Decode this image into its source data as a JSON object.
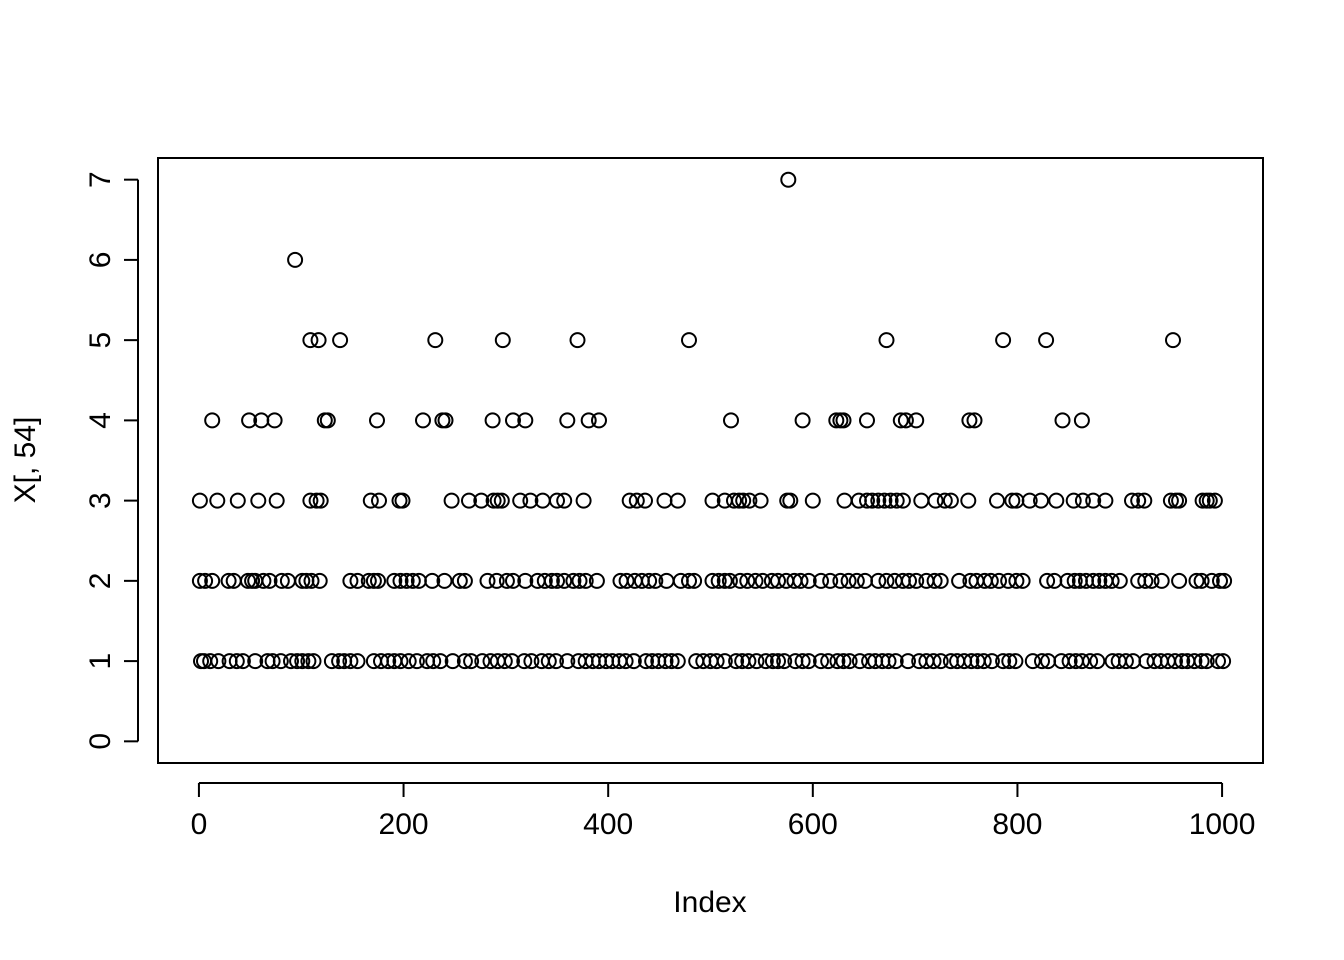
{
  "chart_data": {
    "type": "scatter",
    "title": "",
    "xlabel": "Index",
    "ylabel": "X[, 54]",
    "xlim": [
      -40,
      1040
    ],
    "ylim": [
      -0.27,
      7.27
    ],
    "x_ticks": [
      0,
      200,
      400,
      600,
      800,
      1000
    ],
    "y_ticks": [
      0,
      1,
      2,
      3,
      4,
      5,
      6,
      7
    ],
    "grid": false,
    "legend": "none",
    "marker": "open-circle",
    "points": {
      "7": [
        576
      ],
      "6": [
        94
      ],
      "5": [
        109,
        117,
        138,
        231,
        297,
        370,
        479,
        672,
        786,
        828,
        952
      ],
      "4": [
        13,
        49,
        61,
        74,
        123,
        126,
        174,
        219,
        238,
        241,
        287,
        307,
        319,
        360,
        381,
        391,
        520,
        590,
        623,
        627,
        630,
        653,
        686,
        691,
        701,
        753,
        758,
        844,
        863
      ],
      "3": [
        1,
        18,
        38,
        58,
        76,
        109,
        115,
        119,
        168,
        176,
        196,
        199,
        247,
        264,
        276,
        288,
        292,
        296,
        314,
        324,
        336,
        350,
        357,
        376,
        421,
        428,
        436,
        455,
        468,
        502,
        514,
        523,
        528,
        532,
        538,
        549,
        575,
        578,
        600,
        631,
        645,
        653,
        658,
        664,
        670,
        676,
        682,
        688,
        706,
        720,
        729,
        735,
        752,
        780,
        795,
        799,
        812,
        823,
        838,
        855,
        864,
        874,
        886,
        912,
        918,
        924,
        950,
        955,
        958,
        981,
        985,
        988,
        993
      ],
      "2": [
        1,
        6,
        13,
        29,
        34,
        48,
        52,
        55,
        63,
        69,
        81,
        87,
        101,
        105,
        110,
        118,
        148,
        155,
        166,
        171,
        175,
        191,
        197,
        203,
        209,
        215,
        228,
        240,
        255,
        260,
        282,
        291,
        301,
        307,
        319,
        331,
        338,
        345,
        350,
        357,
        366,
        372,
        378,
        389,
        412,
        418,
        426,
        433,
        440,
        446,
        457,
        471,
        479,
        484,
        502,
        508,
        514,
        519,
        529,
        536,
        544,
        551,
        560,
        566,
        574,
        582,
        588,
        596,
        608,
        617,
        627,
        635,
        643,
        651,
        664,
        672,
        680,
        688,
        694,
        701,
        711,
        719,
        725,
        743,
        754,
        760,
        768,
        774,
        782,
        791,
        799,
        805,
        829,
        836,
        849,
        856,
        861,
        867,
        874,
        880,
        886,
        892,
        900,
        918,
        925,
        931,
        941,
        958,
        975,
        980,
        990,
        998,
        1002
      ],
      "1": [
        2,
        5,
        11,
        19,
        30,
        37,
        43,
        55,
        67,
        72,
        80,
        90,
        96,
        101,
        107,
        112,
        130,
        137,
        142,
        148,
        155,
        171,
        178,
        185,
        191,
        197,
        205,
        213,
        223,
        229,
        236,
        248,
        260,
        266,
        277,
        285,
        292,
        299,
        306,
        318,
        325,
        335,
        342,
        349,
        360,
        371,
        378,
        385,
        391,
        398,
        404,
        411,
        417,
        425,
        437,
        443,
        449,
        456,
        462,
        468,
        486,
        493,
        500,
        506,
        514,
        525,
        531,
        537,
        545,
        554,
        561,
        566,
        572,
        583,
        590,
        596,
        608,
        615,
        624,
        630,
        636,
        646,
        655,
        661,
        668,
        674,
        681,
        693,
        704,
        711,
        718,
        725,
        735,
        741,
        748,
        755,
        761,
        767,
        775,
        786,
        792,
        798,
        815,
        824,
        830,
        843,
        851,
        857,
        863,
        871,
        878,
        893,
        899,
        906,
        913,
        926,
        934,
        940,
        947,
        954,
        961,
        966,
        973,
        980,
        985,
        996,
        1001
      ]
    }
  }
}
